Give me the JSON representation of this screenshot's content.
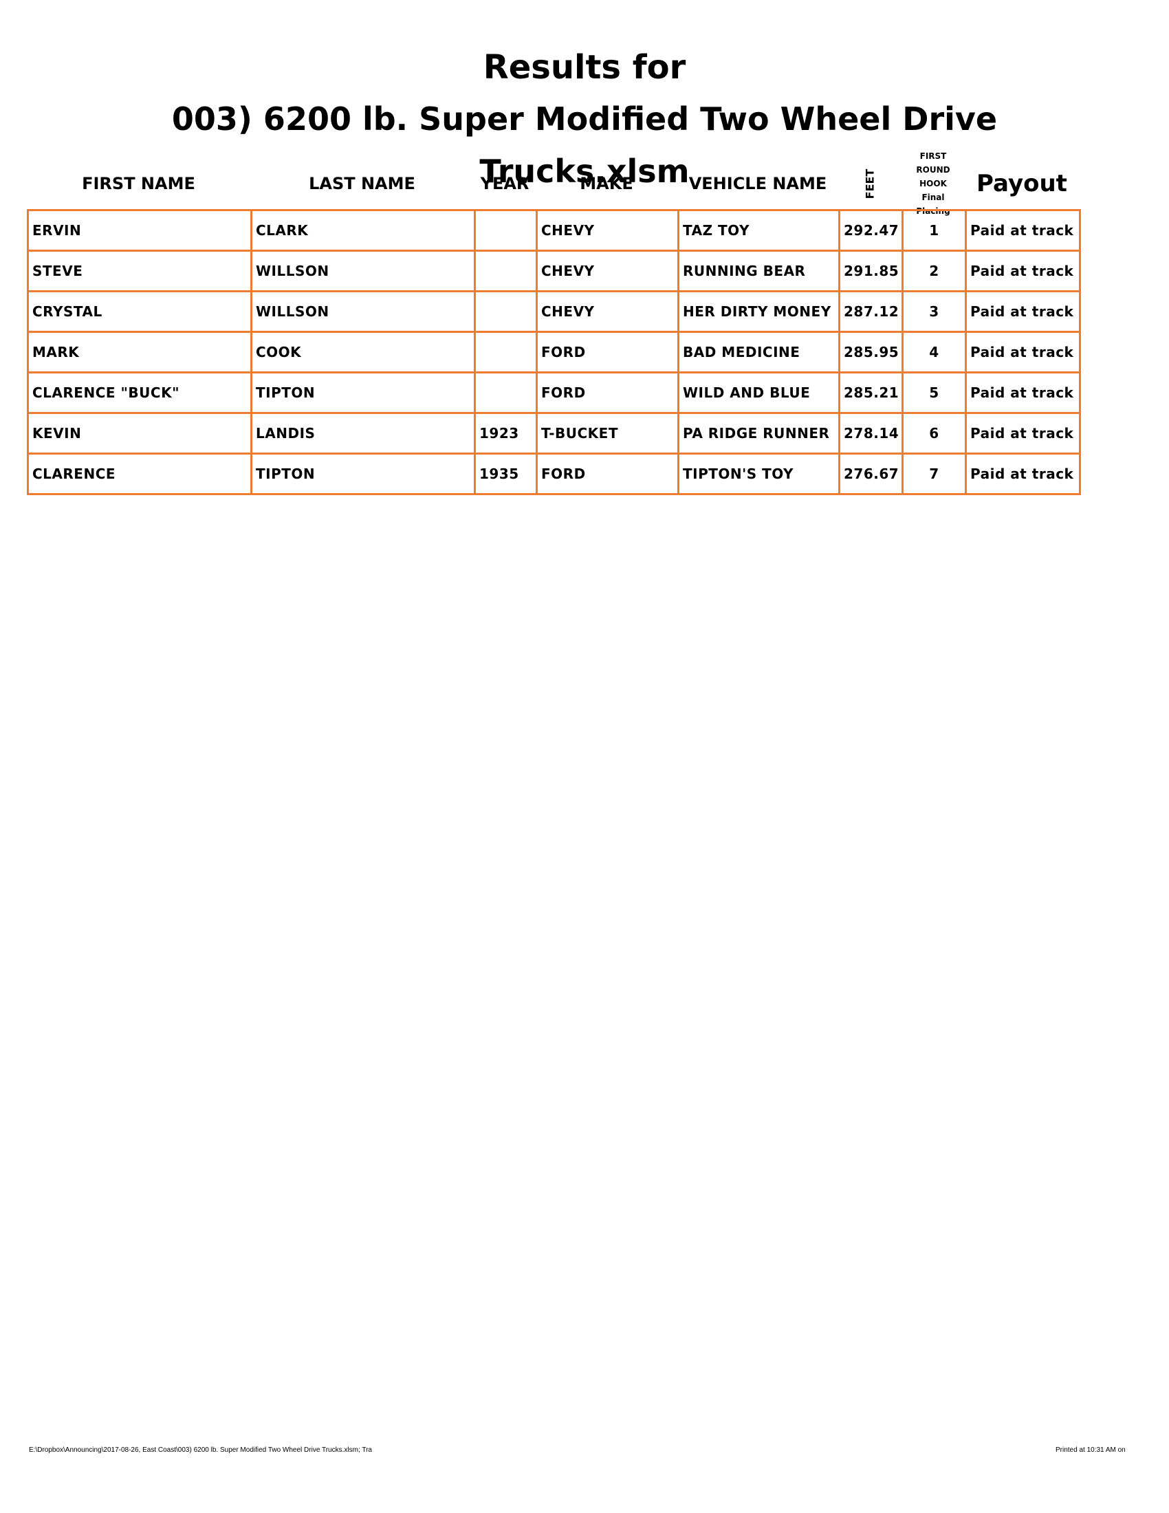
{
  "title": [
    "Results for",
    "003) 6200 lb. Super Modified Two Wheel Drive",
    "Trucks.xlsm"
  ],
  "table": {
    "headers": [
      "FIRST NAME",
      "LAST NAME",
      "YEAR",
      "MAKE",
      "VEHICLE NAME",
      "FEET",
      [
        "FIRST",
        "ROUND",
        "HOOK",
        "Final",
        "Placing"
      ],
      "Payout"
    ],
    "rows": [
      [
        "ERVIN",
        "CLARK",
        null,
        "CHEVY",
        "TAZ TOY",
        292.47,
        1,
        "Paid at track"
      ],
      [
        "STEVE",
        "WILLSON",
        null,
        "CHEVY",
        "RUNNING BEAR",
        291.85,
        2,
        "Paid at track"
      ],
      [
        "CRYSTAL",
        "WILLSON",
        null,
        "CHEVY",
        "HER DIRTY MONEY",
        287.12,
        3,
        "Paid at track"
      ],
      [
        "MARK",
        "COOK",
        null,
        "FORD",
        "BAD MEDICINE",
        285.95,
        4,
        "Paid at track"
      ],
      [
        "CLARENCE \"BUCK\"",
        "TIPTON",
        null,
        "FORD",
        "WILD AND BLUE",
        285.21,
        5,
        "Paid at track"
      ],
      [
        "KEVIN",
        "LANDIS",
        1923,
        "T-BUCKET",
        "PA RIDGE RUNNER",
        278.14,
        6,
        "Paid at track"
      ],
      [
        "CLARENCE",
        "TIPTON",
        1935,
        "FORD",
        "TIPTON'S TOY",
        276.67,
        7,
        "Paid at track"
      ]
    ]
  },
  "footer": {
    "left": "E:\\Dropbox\\Announcing\\2017-08-26, East Coast\\003) 6200 lb. Super Modified Two Wheel Drive Trucks.xlsm; Tra",
    "right": "Printed at 10:31 AM on"
  }
}
